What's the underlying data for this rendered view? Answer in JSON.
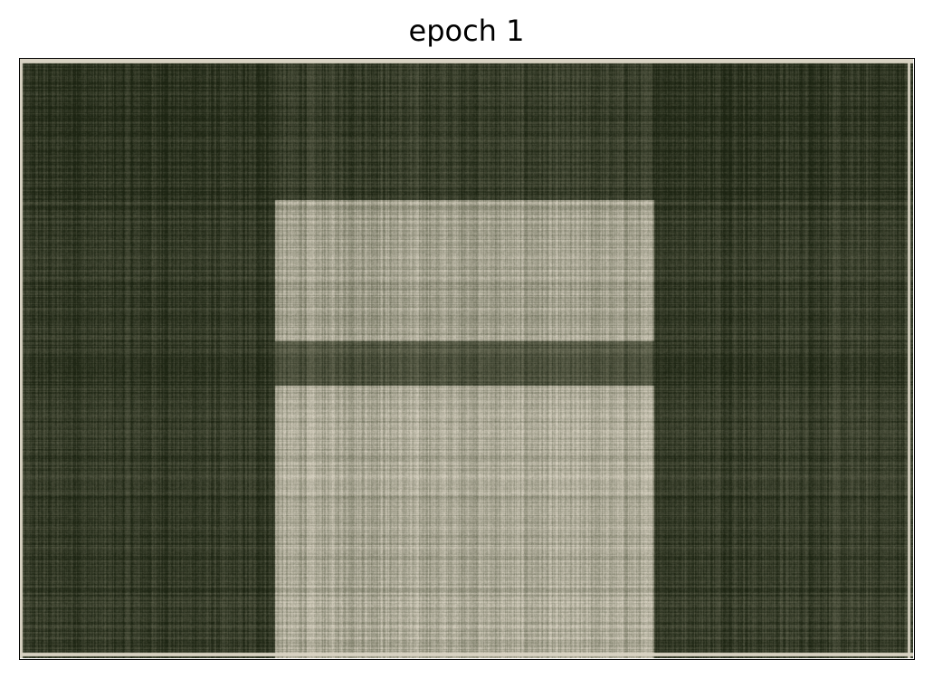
{
  "chart_data": {
    "type": "heatmap",
    "title": "epoch 1",
    "xlabel": "",
    "ylabel": "",
    "axes_visible": false,
    "grid": false,
    "colormap": {
      "low": "#1c2412",
      "mid": "#6b6d58",
      "high": "#d8d2c2"
    },
    "value_range": [
      0,
      1
    ],
    "column_bands": [
      {
        "from": 0.0,
        "to": 0.285,
        "level": 0.12
      },
      {
        "from": 0.285,
        "to": 0.71,
        "level": 0.82
      },
      {
        "from": 0.71,
        "to": 1.0,
        "level": 0.15
      }
    ],
    "row_bands": [
      {
        "from": 0.0,
        "to": 0.235,
        "level": 0.1
      },
      {
        "from": 0.235,
        "to": 0.47,
        "level": 0.78
      },
      {
        "from": 0.47,
        "to": 0.545,
        "level": 0.3
      },
      {
        "from": 0.545,
        "to": 1.0,
        "level": 0.85
      }
    ]
  }
}
